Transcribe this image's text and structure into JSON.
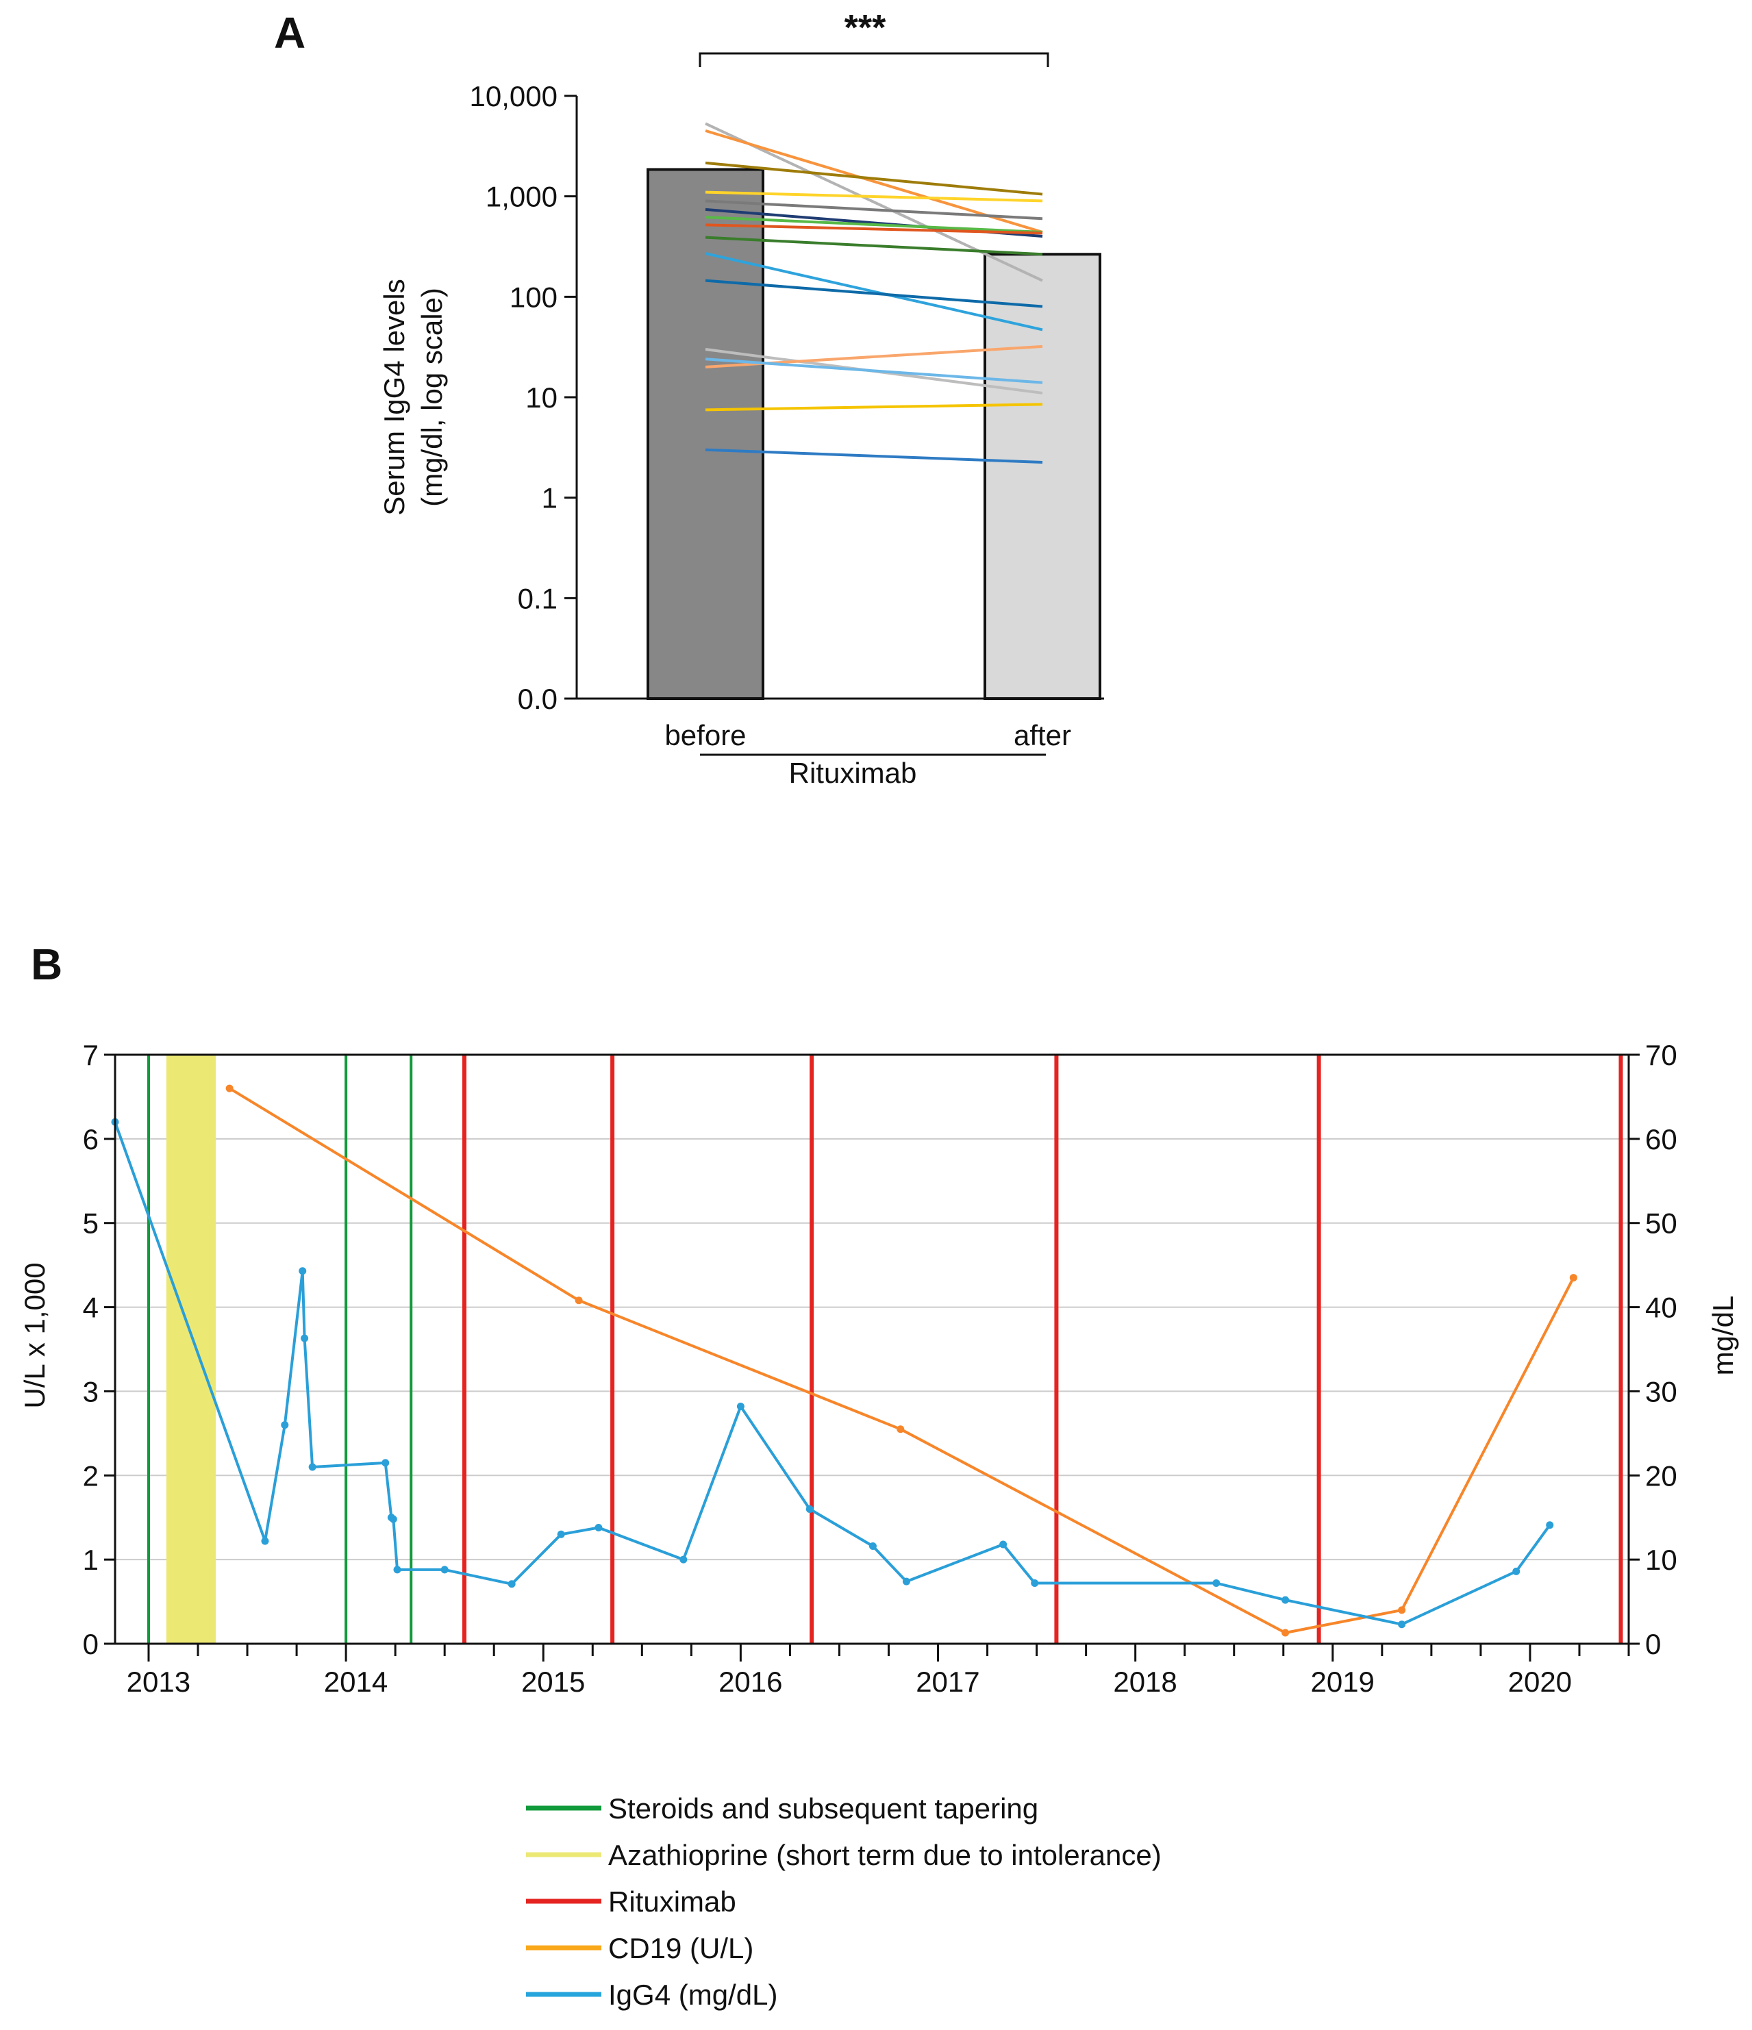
{
  "chart_data": [
    {
      "panel": "A",
      "type": "bar",
      "scale": "log",
      "categories": [
        "before",
        "after"
      ],
      "group_label": "Rituximab",
      "values": [
        1850,
        265
      ],
      "bar_colors": [
        "#878787",
        "#d9d9d9"
      ],
      "ylabel_line1": "Serum IgG4 levels",
      "ylabel_line2": "(mg/dl, log scale)",
      "yticks": [
        {
          "v": 0.01,
          "label": "0.0"
        },
        {
          "v": 0.1,
          "label": "0.1"
        },
        {
          "v": 1,
          "label": "1"
        },
        {
          "v": 10,
          "label": "10"
        },
        {
          "v": 100,
          "label": "100"
        },
        {
          "v": 1000,
          "label": "1,000"
        },
        {
          "v": 10000,
          "label": "10,000"
        }
      ],
      "ylim": [
        0.01,
        10000
      ],
      "significance": "***",
      "patients": [
        {
          "before": 5300,
          "after": 145,
          "color": "#b3b3b3"
        },
        {
          "before": 4500,
          "after": 440,
          "color": "#f7943d"
        },
        {
          "before": 2150,
          "after": 1050,
          "color": "#9e7c0a"
        },
        {
          "before": 1100,
          "after": 900,
          "color": "#ffd42a"
        },
        {
          "before": 900,
          "after": 600,
          "color": "#7a7a7a"
        },
        {
          "before": 740,
          "after": 400,
          "color": "#1f3c73"
        },
        {
          "before": 620,
          "after": 440,
          "color": "#58b947"
        },
        {
          "before": 520,
          "after": 430,
          "color": "#e0561f"
        },
        {
          "before": 390,
          "after": 265,
          "color": "#3a7d2c"
        },
        {
          "before": 270,
          "after": 47,
          "color": "#2ea3dc"
        },
        {
          "before": 145,
          "after": 80,
          "color": "#0e6aa8"
        },
        {
          "before": 30,
          "after": 11,
          "color": "#bdbdbd"
        },
        {
          "before": 20,
          "after": 32,
          "color": "#f9a66c"
        },
        {
          "before": 24,
          "after": 14,
          "color": "#6cb7e8"
        },
        {
          "before": 7.5,
          "after": 8.5,
          "color": "#f5c400"
        },
        {
          "before": 3,
          "after": 2.25,
          "color": "#2e7bc4"
        }
      ]
    },
    {
      "panel": "B",
      "type": "line",
      "ylabel_left": "U/L x 1,000",
      "ylabel_right": "mg/dL",
      "ylim_left": [
        0,
        7
      ],
      "ylim_right": [
        0,
        70
      ],
      "yticks_left": [
        "0",
        "1",
        "2",
        "3",
        "4",
        "5",
        "6",
        "7"
      ],
      "yticks_right": [
        "0",
        "10",
        "20",
        "30",
        "40",
        "50",
        "60",
        "70"
      ],
      "xlim": [
        2012.83,
        2020.5
      ],
      "x_year_labels": [
        "2013",
        "2014",
        "2015",
        "2016",
        "2017",
        "2018",
        "2019",
        "2020"
      ],
      "series": [
        {
          "name": "CD19 (U/L)",
          "axis": "left",
          "color": "#f7862a",
          "points": [
            [
              2013.41,
              6.6
            ],
            [
              2015.18,
              4.08
            ],
            [
              2016.81,
              2.55
            ],
            [
              2018.76,
              0.13
            ],
            [
              2019.35,
              0.4
            ],
            [
              2020.22,
              4.35
            ]
          ]
        },
        {
          "name": "IgG4 (mg/dL)",
          "axis": "right",
          "color": "#2a9fd8",
          "points": [
            [
              2012.83,
              62
            ],
            [
              2013.59,
              12.2
            ],
            [
              2013.69,
              26
            ],
            [
              2013.78,
              44.3
            ],
            [
              2013.79,
              36.3
            ],
            [
              2013.83,
              21
            ],
            [
              2014.2,
              21.5
            ],
            [
              2014.23,
              15
            ],
            [
              2014.24,
              14.8
            ],
            [
              2014.26,
              8.8
            ],
            [
              2014.5,
              8.8
            ],
            [
              2014.84,
              7.1
            ],
            [
              2015.09,
              13
            ],
            [
              2015.28,
              13.8
            ],
            [
              2015.71,
              10
            ],
            [
              2016.0,
              28.2
            ],
            [
              2016.35,
              16
            ],
            [
              2016.67,
              11.6
            ],
            [
              2016.84,
              7.4
            ],
            [
              2017.33,
              11.8
            ],
            [
              2017.49,
              7.2
            ],
            [
              2018.41,
              7.2
            ],
            [
              2018.76,
              5.2
            ],
            [
              2019.35,
              2.3
            ],
            [
              2019.93,
              8.6
            ],
            [
              2020.1,
              14.1
            ]
          ]
        }
      ],
      "events": {
        "steroids": [
          2013.0,
          2014.0,
          2014.33
        ],
        "azathioprine": [
          2013.09,
          2013.34
        ],
        "rituximab": [
          2014.6,
          2015.35,
          2016.36,
          2017.6,
          2018.93,
          2020.46
        ]
      },
      "legend": [
        {
          "key": "steroids",
          "label": "Steroids and subsequent tapering",
          "color": "#119a3b"
        },
        {
          "key": "azathioprine",
          "label": "Azathioprine (short term due to intolerance)",
          "color": "#ece874"
        },
        {
          "key": "rituximab",
          "label": "Rituximab",
          "color": "#e52421"
        },
        {
          "key": "cd19",
          "label": "CD19 (U/L)",
          "color": "#f9a81b"
        },
        {
          "key": "igg4",
          "label": "IgG4 (mg/dL)",
          "color": "#26a4dc"
        }
      ]
    }
  ],
  "panel_labels": {
    "a": "A",
    "b": "B"
  }
}
